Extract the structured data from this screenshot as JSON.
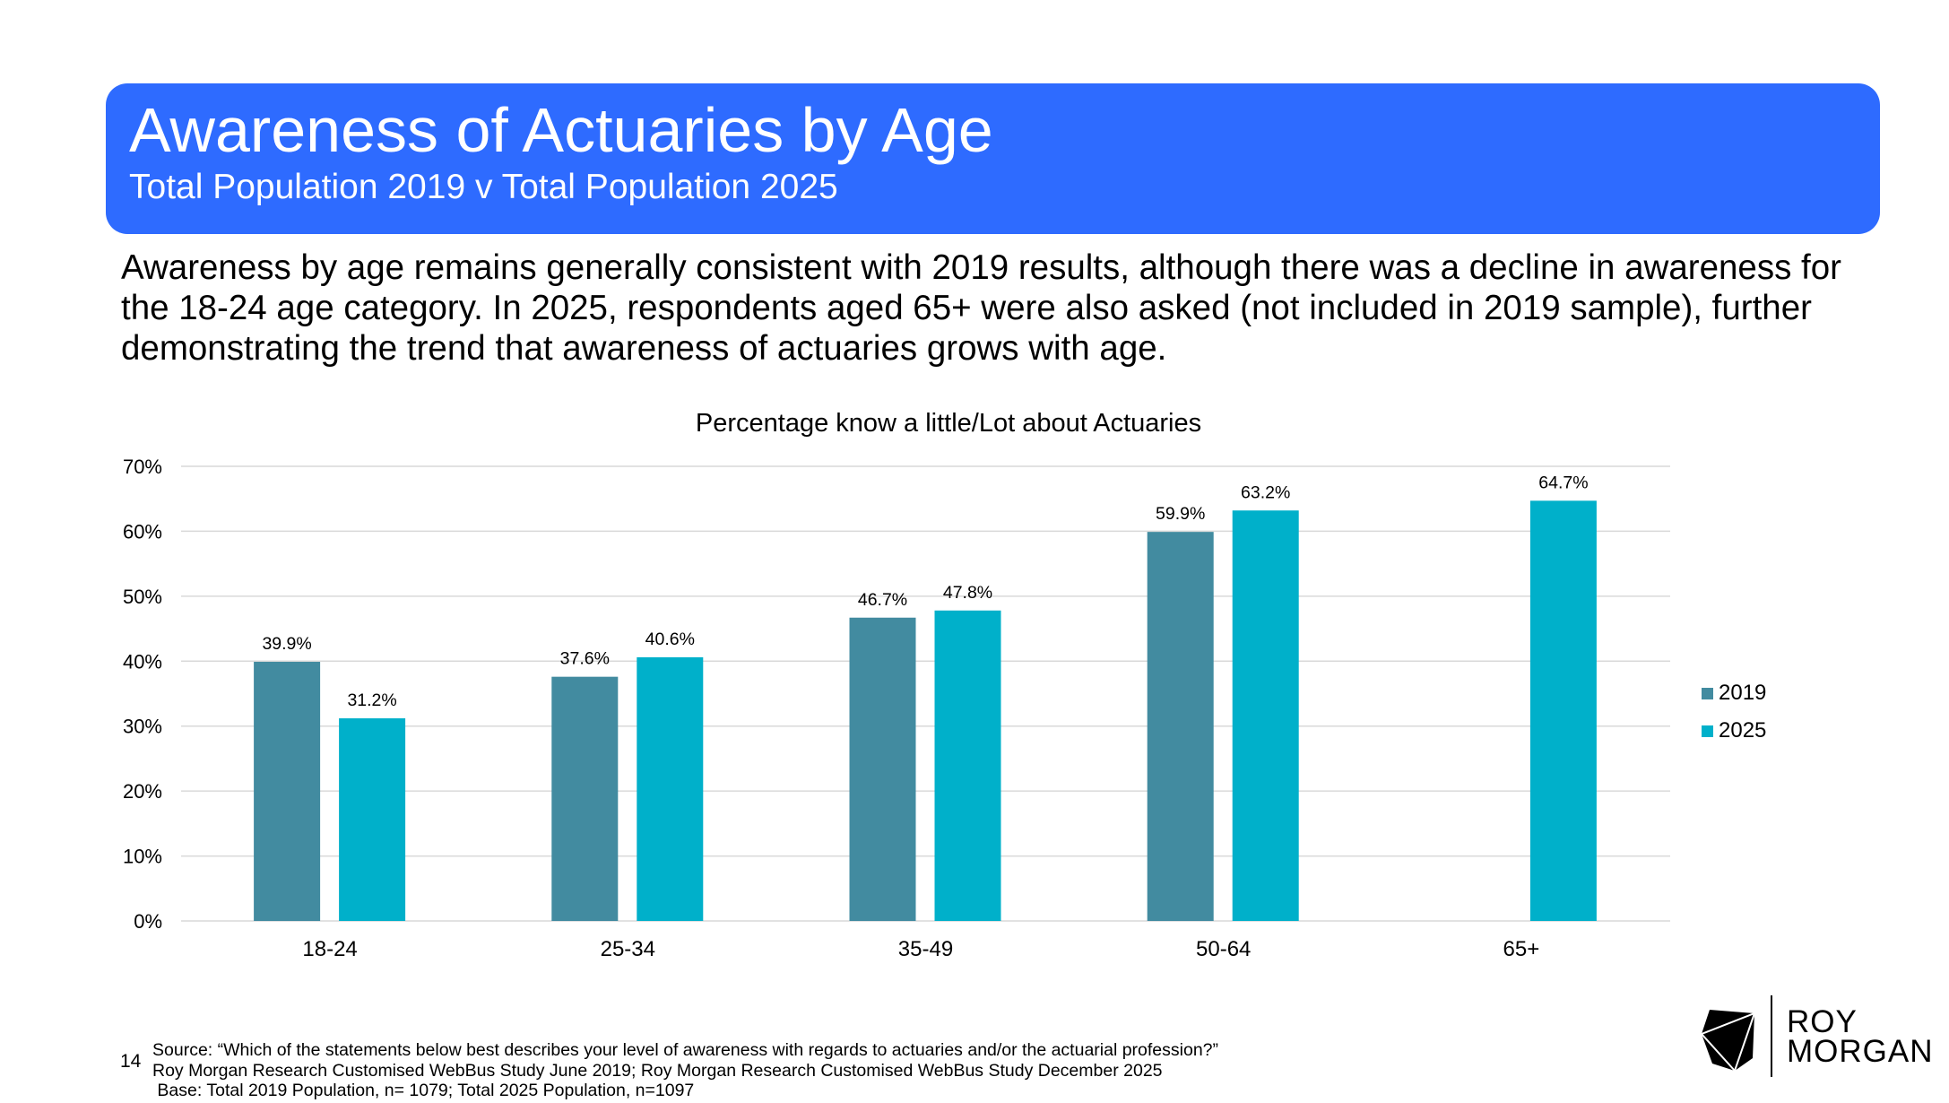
{
  "header": {
    "title": "Awareness of Actuaries by Age",
    "subtitle": "Total Population 2019 v Total Population 2025",
    "color": "#2E6BFF"
  },
  "summary": "Awareness by age remains generally consistent with 2019 results, although there was a decline in awareness for the 18-24 age category. In 2025, respondents aged 65+ were also asked (not included in 2019 sample), further demonstrating the trend that awareness of actuaries grows with age.",
  "chart_data": {
    "type": "bar",
    "title": "Percentage know a little/Lot about Actuaries",
    "categories": [
      "18-24",
      "25-34",
      "35-49",
      "50-64",
      "65+"
    ],
    "series": [
      {
        "name": "2019",
        "color": "#428BA0",
        "values": [
          39.9,
          37.6,
          46.7,
          59.9,
          null
        ],
        "labels": [
          "39.9%",
          "37.6%",
          "46.7%",
          "59.9%",
          null
        ]
      },
      {
        "name": "2025",
        "color": "#00B0CA",
        "values": [
          31.2,
          40.6,
          47.8,
          63.2,
          64.7
        ],
        "labels": [
          "31.2%",
          "40.6%",
          "47.8%",
          "63.2%",
          "64.7%"
        ]
      }
    ],
    "ylim": [
      0,
      70
    ],
    "yticks": [
      "0%",
      "10%",
      "20%",
      "30%",
      "40%",
      "50%",
      "60%",
      "70%"
    ],
    "grid": true,
    "legend": "right"
  },
  "footer": {
    "page_number": "14",
    "source_lines": [
      "Source: “Which of the statements below best describes your level of awareness with regards to actuaries and/or the actuarial profession?”",
      "Roy Morgan Research Customised WebBus Study June 2019; Roy Morgan Research Customised WebBus Study December 2025",
      " Base: Total 2019 Population, n= 1079; Total 2025 Population, n=1097"
    ]
  },
  "logo": {
    "line1": "ROY",
    "line2": "MORGAN"
  }
}
